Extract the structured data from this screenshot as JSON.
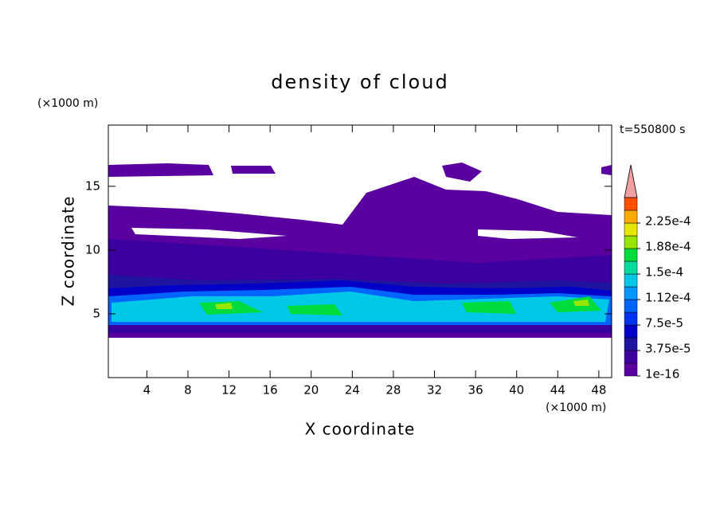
{
  "chart_data": {
    "type": "contour",
    "title": "density of cloud",
    "xlabel": "X coordinate",
    "ylabel": "Z coordinate",
    "x_unit": "(×1000 m)",
    "y_unit": "(×1000 m)",
    "annotation": "t=550800 s",
    "xlim": [
      0.25,
      49.25
    ],
    "xticks": [
      4,
      8,
      12,
      16,
      20,
      24,
      28,
      32,
      36,
      40,
      44,
      48
    ],
    "ylim": [
      0,
      19.8
    ],
    "yticks": [
      5,
      10,
      15
    ],
    "colorbar": {
      "clim": [
        0,
        0.0002625
      ],
      "colors": [
        "#5a00a0",
        "#3c00a0",
        "#1e14a0",
        "#0000c8",
        "#0032f0",
        "#0064ff",
        "#0096ff",
        "#00c8e6",
        "#00dca0",
        "#00dc3c",
        "#96e600",
        "#e6e600",
        "#ffaa00",
        "#ff5000"
      ],
      "extend_color": "#f0a0a0",
      "ticks": [
        1e-16,
        {
          "value": 3.75e-05,
          "label": "3.75e-5"
        },
        {
          "value": 7.5e-05,
          "label": "7.5e-5"
        },
        {
          "value": 0.0001125,
          "label": "1.12e-4"
        },
        {
          "value": 0.00015,
          "label": "1.5e-4"
        },
        {
          "value": 0.0001875,
          "label": "1.88e-4"
        },
        {
          "value": 0.000225,
          "label": "2.25e-4"
        }
      ]
    }
  }
}
